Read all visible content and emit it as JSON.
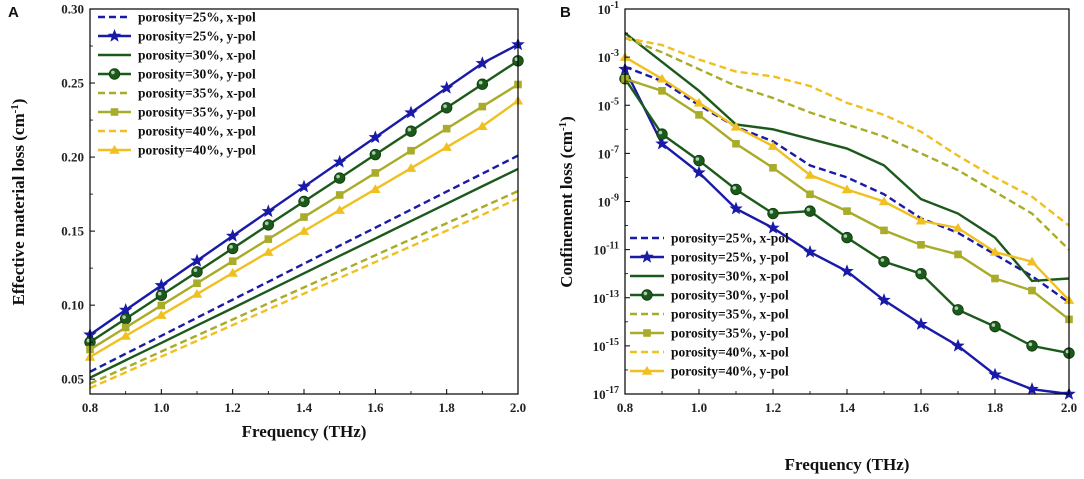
{
  "colors": {
    "p25": "#1a1aa8",
    "p30": "#1c5a1c",
    "p35": "#a8ac28",
    "p40": "#f0c020"
  },
  "series_labels": [
    "porosity=25%, x-pol",
    "porosity=25%, y-pol",
    "porosity=30%, x-pol",
    "porosity=30%, y-pol",
    "porosity=35%, x-pol",
    "porosity=35%, y-pol",
    "porosity=40%, x-pol",
    "porosity=40%, y-pol"
  ],
  "chart_data": [
    {
      "type": "line",
      "panel_label": "A",
      "xlabel": "Frequency (THz)",
      "ylabel_main": "Effective material loss (cm",
      "ylabel_sup": "-1",
      "ylabel_close": ")",
      "xlim": [
        0.8,
        2.0
      ],
      "ylim": [
        0.04,
        0.3
      ],
      "xticks": [
        "0.8",
        "1.0",
        "1.2",
        "1.4",
        "1.6",
        "1.8",
        "2.0"
      ],
      "yticks": [
        "0.05",
        "0.10",
        "0.15",
        "0.20",
        "0.25",
        "0.30"
      ],
      "legend_position": "top-left",
      "x": [
        0.8,
        0.9,
        1.0,
        1.1,
        1.2,
        1.3,
        1.4,
        1.5,
        1.6,
        1.7,
        1.8,
        1.9,
        2.0
      ],
      "series": [
        {
          "name": "porosity=25%, x-pol",
          "color_key": "p25",
          "dash": true,
          "marker": "none",
          "values": [
            0.055,
            0.0672,
            0.0793,
            0.0915,
            0.1037,
            0.1158,
            0.128,
            0.1402,
            0.1523,
            0.1645,
            0.1767,
            0.1888,
            0.201
          ]
        },
        {
          "name": "porosity=25%, y-pol",
          "color_key": "p25",
          "dash": false,
          "marker": "star",
          "values": [
            0.08,
            0.0967,
            0.1133,
            0.13,
            0.1467,
            0.1633,
            0.18,
            0.1967,
            0.2133,
            0.23,
            0.2467,
            0.2633,
            0.276
          ]
        },
        {
          "name": "porosity=30%, x-pol",
          "color_key": "p30",
          "dash": false,
          "marker": "none",
          "values": [
            0.051,
            0.0628,
            0.0745,
            0.0863,
            0.098,
            0.1098,
            0.1215,
            0.1333,
            0.145,
            0.1568,
            0.1685,
            0.1803,
            0.192
          ]
        },
        {
          "name": "porosity=30%, y-pol",
          "color_key": "p30",
          "dash": false,
          "marker": "circle",
          "values": [
            0.075,
            0.0908,
            0.1067,
            0.1225,
            0.1383,
            0.1542,
            0.17,
            0.1858,
            0.2017,
            0.2175,
            0.2333,
            0.2492,
            0.265
          ]
        },
        {
          "name": "porosity=35%, x-pol",
          "color_key": "p35",
          "dash": true,
          "marker": "none",
          "values": [
            0.047,
            0.0578,
            0.0687,
            0.0795,
            0.0903,
            0.1012,
            0.112,
            0.1228,
            0.1337,
            0.1445,
            0.1553,
            0.1662,
            0.177
          ]
        },
        {
          "name": "porosity=35%, y-pol",
          "color_key": "p35",
          "dash": false,
          "marker": "square",
          "values": [
            0.07,
            0.0849,
            0.0998,
            0.1148,
            0.1297,
            0.1446,
            0.1595,
            0.1744,
            0.1893,
            0.2043,
            0.2192,
            0.2341,
            0.249
          ]
        },
        {
          "name": "porosity=40%, x-pol",
          "color_key": "p40",
          "dash": true,
          "marker": "none",
          "values": [
            0.044,
            0.0546,
            0.0653,
            0.0759,
            0.0865,
            0.0972,
            0.1078,
            0.1184,
            0.1291,
            0.1397,
            0.1503,
            0.161,
            0.172
          ]
        },
        {
          "name": "porosity=40%, y-pol",
          "color_key": "p40",
          "dash": false,
          "marker": "triangle",
          "values": [
            0.065,
            0.0792,
            0.0933,
            0.1075,
            0.1217,
            0.1358,
            0.15,
            0.1642,
            0.1783,
            0.1925,
            0.2067,
            0.2208,
            0.238
          ]
        }
      ]
    },
    {
      "type": "line",
      "panel_label": "B",
      "xlabel": "Frequency (THz)",
      "ylabel_main": "Confinement loss (cm",
      "ylabel_sup": "-1",
      "ylabel_close": ")",
      "yscale": "log",
      "xlim": [
        0.8,
        2.0
      ],
      "ylim_exp": [
        -17,
        -1
      ],
      "xticks": [
        "0.8",
        "1.0",
        "1.2",
        "1.4",
        "1.6",
        "1.8",
        "2.0"
      ],
      "yticks": [
        {
          "base": "10",
          "exp": "-17"
        },
        {
          "base": "10",
          "exp": "-15"
        },
        {
          "base": "10",
          "exp": "-13"
        },
        {
          "base": "10",
          "exp": "-11"
        },
        {
          "base": "10",
          "exp": "-9"
        },
        {
          "base": "10",
          "exp": "-7"
        },
        {
          "base": "10",
          "exp": "-5"
        },
        {
          "base": "10",
          "exp": "-3"
        },
        {
          "base": "10",
          "exp": "-1"
        }
      ],
      "legend_position": "bottom-left",
      "x": [
        0.8,
        0.9,
        1.0,
        1.1,
        1.2,
        1.3,
        1.4,
        1.5,
        1.6,
        1.7,
        1.8,
        1.9,
        2.0
      ],
      "series": [
        {
          "name": "porosity=25%, x-pol",
          "color_key": "p25",
          "dash": true,
          "marker": "none",
          "log10_values": [
            -3.4,
            -4.0,
            -5.0,
            -5.9,
            -6.5,
            -7.5,
            -8.0,
            -8.7,
            -9.7,
            -10.3,
            -11.2,
            -12.1,
            -13.2
          ]
        },
        {
          "name": "porosity=25%, y-pol",
          "color_key": "p25",
          "dash": false,
          "marker": "star",
          "log10_values": [
            -3.5,
            -6.6,
            -7.8,
            -9.3,
            -10.1,
            -11.1,
            -11.9,
            -13.1,
            -14.1,
            -15.0,
            -16.2,
            -16.8,
            -17.0
          ]
        },
        {
          "name": "porosity=30%, x-pol",
          "color_key": "p30",
          "dash": false,
          "marker": "none",
          "log10_values": [
            -2.0,
            -3.2,
            -4.4,
            -5.8,
            -6.0,
            -6.4,
            -6.8,
            -7.5,
            -8.9,
            -9.5,
            -10.5,
            -12.3,
            -12.2
          ]
        },
        {
          "name": "porosity=30%, y-pol",
          "color_key": "p30",
          "dash": false,
          "marker": "circle",
          "log10_values": [
            -3.9,
            -6.2,
            -7.3,
            -8.5,
            -9.5,
            -9.4,
            -10.5,
            -11.5,
            -12.0,
            -13.5,
            -14.2,
            -15.0,
            -15.3
          ]
        },
        {
          "name": "porosity=35%, x-pol",
          "color_key": "p35",
          "dash": true,
          "marker": "none",
          "log10_values": [
            -2.2,
            -2.8,
            -3.5,
            -4.2,
            -4.7,
            -5.3,
            -5.8,
            -6.3,
            -7.0,
            -7.7,
            -8.6,
            -9.5,
            -11.0
          ]
        },
        {
          "name": "porosity=35%, y-pol",
          "color_key": "p35",
          "dash": false,
          "marker": "square",
          "log10_values": [
            -3.9,
            -4.4,
            -5.4,
            -6.6,
            -7.6,
            -8.7,
            -9.4,
            -10.2,
            -10.8,
            -11.2,
            -12.2,
            -12.7,
            -13.9
          ]
        },
        {
          "name": "porosity=40%, x-pol",
          "color_key": "p40",
          "dash": true,
          "marker": "none",
          "log10_values": [
            -2.2,
            -2.5,
            -3.1,
            -3.6,
            -3.8,
            -4.2,
            -4.9,
            -5.4,
            -6.1,
            -7.1,
            -8.0,
            -8.8,
            -10.0
          ]
        },
        {
          "name": "porosity=40%, y-pol",
          "color_key": "p40",
          "dash": false,
          "marker": "triangle",
          "log10_values": [
            -3.0,
            -3.9,
            -4.9,
            -5.9,
            -6.7,
            -7.9,
            -8.5,
            -9.0,
            -9.8,
            -10.1,
            -11.1,
            -11.5,
            -13.1
          ]
        }
      ]
    }
  ]
}
